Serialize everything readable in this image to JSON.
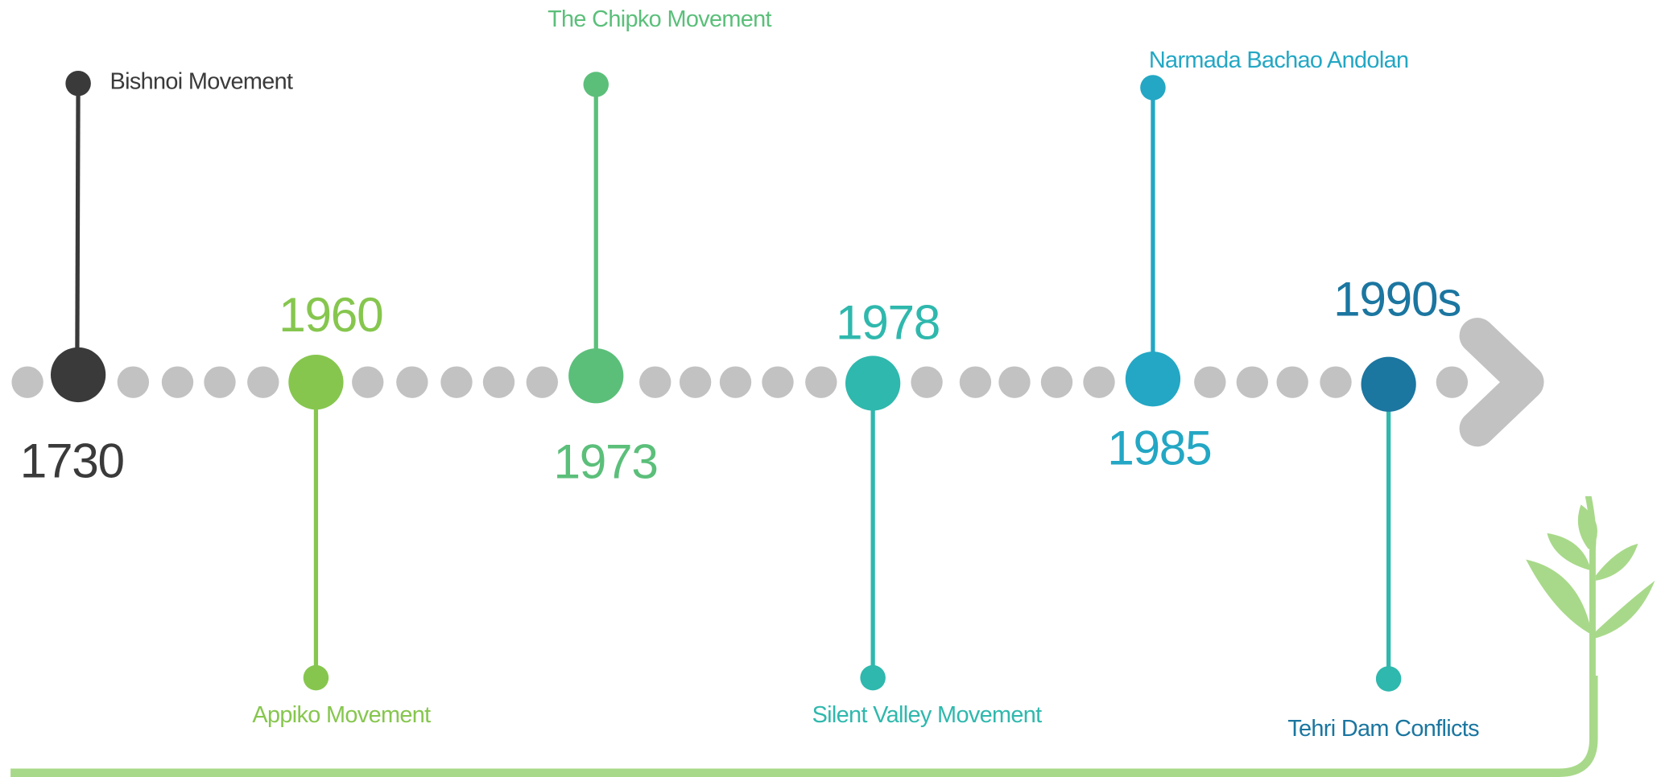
{
  "events": [
    {
      "year": "1730",
      "label": "Bishnoi Movement"
    },
    {
      "year": "1960",
      "label": "Appiko Movement"
    },
    {
      "year": "1973",
      "label": "The Chipko Movement"
    },
    {
      "year": "1978",
      "label": "Silent Valley Movement"
    },
    {
      "year": "1985",
      "label": "Narmada Bachao Andolan"
    },
    {
      "year": "1990s",
      "label": "Tehri Dam Conflicts"
    }
  ]
}
